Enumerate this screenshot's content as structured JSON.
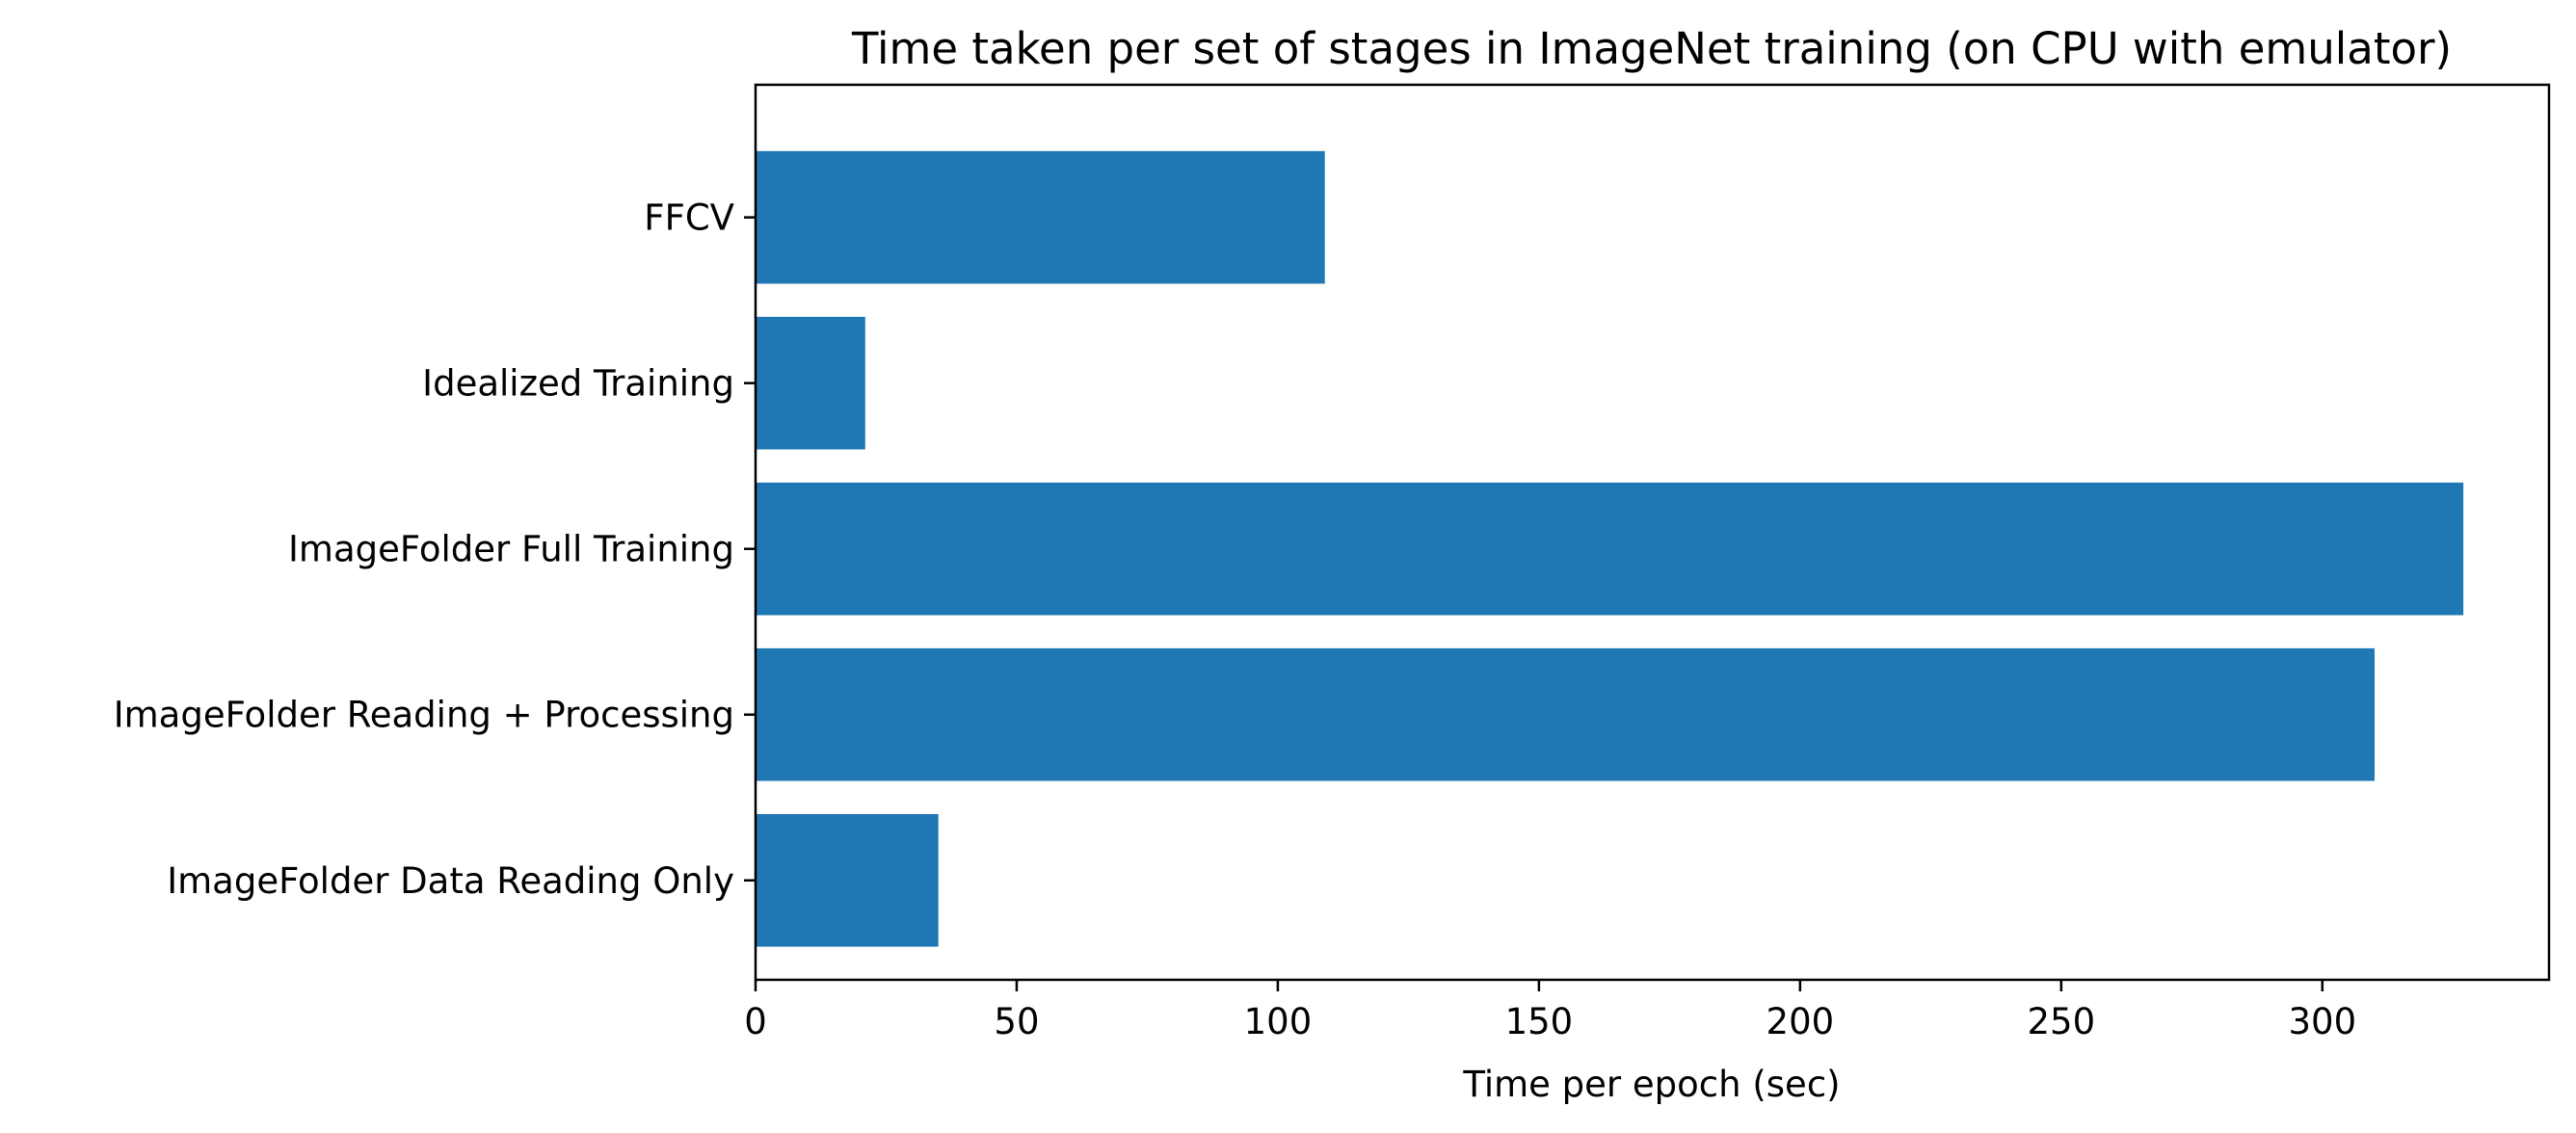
{
  "chart_data": {
    "type": "bar",
    "orientation": "horizontal",
    "title": "Time taken per set of stages in ImageNet training (on CPU with emulator)",
    "xlabel": "Time per epoch (sec)",
    "ylabel": "",
    "categories": [
      "ImageFolder Data Reading Only",
      "ImageFolder Reading + Processing",
      "ImageFolder Full Training",
      "Idealized Training",
      "FFCV"
    ],
    "values": [
      35,
      310,
      327,
      21,
      109
    ],
    "xlim": [
      0,
      343.4
    ],
    "xticks": [
      0,
      50,
      100,
      150,
      200,
      250,
      300
    ],
    "xtick_labels": [
      "0",
      "50",
      "100",
      "150",
      "200",
      "250",
      "300"
    ],
    "bar_color": "#1f77b4",
    "grid": false,
    "legend": "none"
  }
}
